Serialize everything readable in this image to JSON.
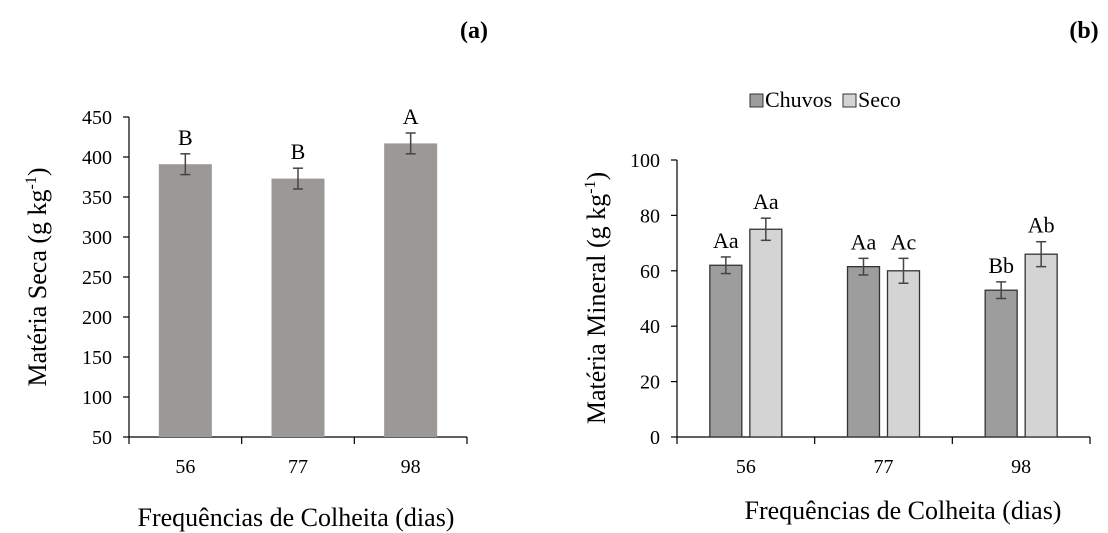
{
  "chart_data": [
    {
      "panel_label": "(a)",
      "type": "bar",
      "categories": [
        "56",
        "77",
        "98"
      ],
      "series": [
        {
          "values": [
            391,
            373,
            417
          ],
          "error": [
            13,
            13,
            13
          ],
          "color": "#9c9896"
        }
      ],
      "significance_labels": [
        [
          "B"
        ],
        [
          "B"
        ],
        [
          "A"
        ]
      ],
      "title": "",
      "xlabel": "Frequências de Colheita (dias)",
      "ylabel": "Matéria Seca  (g kg",
      "ylabel_sup": "-1",
      "ylabel_end": ")",
      "ylim": [
        50,
        450
      ],
      "yticks": [
        "50",
        "100",
        "150",
        "200",
        "250",
        "300",
        "350",
        "400",
        "450"
      ],
      "grid": false,
      "legend": "none"
    },
    {
      "panel_label": "(b)",
      "type": "bar",
      "categories": [
        "56",
        "77",
        "98"
      ],
      "series": [
        {
          "name": "Chuvos",
          "values": [
            62,
            61.5,
            53
          ],
          "error": [
            3,
            3,
            3
          ],
          "color": "#9d9d9d"
        },
        {
          "name": "Seco",
          "values": [
            75,
            60,
            66
          ],
          "error": [
            4,
            4.5,
            4.5
          ],
          "color": "#d4d4d4"
        }
      ],
      "significance_labels": [
        [
          "Aa",
          "Aa"
        ],
        [
          "Aa",
          "Ac"
        ],
        [
          "Bb",
          "Ab"
        ]
      ],
      "title": "",
      "xlabel": "Frequências de Colheita (dias)",
      "ylabel": "Matéria Mineral (g kg",
      "ylabel_sup": "-1",
      "ylabel_end": ")",
      "ylim": [
        0,
        100
      ],
      "yticks": [
        "0",
        "20",
        "40",
        "60",
        "80",
        "100"
      ],
      "grid": false,
      "legend": "top-center"
    }
  ]
}
